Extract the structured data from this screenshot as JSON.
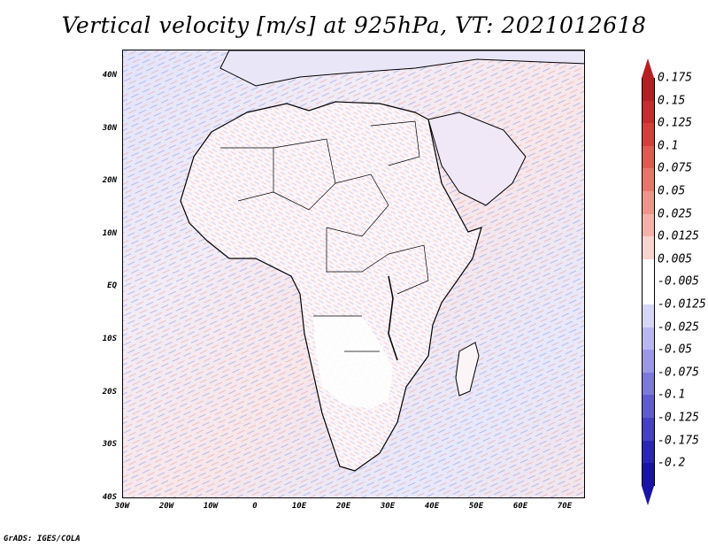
{
  "title": "Vertical velocity [m/s] at 925hPa, VT: 2021012618",
  "credit": "GrADS: IGES/COLA",
  "map": {
    "region": "Africa",
    "variable": "Vertical velocity",
    "units": "m/s",
    "level": "925hPa",
    "valid_time": "2021012618",
    "lat_labels": [
      "40N",
      "30N",
      "20N",
      "10N",
      "EQ",
      "10S",
      "20S",
      "30S",
      "40S"
    ],
    "lon_labels": [
      "30W",
      "20W",
      "10W",
      "0",
      "10E",
      "20E",
      "30E",
      "40E",
      "50E",
      "60E",
      "70E"
    ],
    "land_color": "#ffffff",
    "ocean_color_up": "#f6dde2",
    "ocean_color_down": "#dfe1f8"
  },
  "colorbar": {
    "labels": [
      "0.175",
      "0.15",
      "0.125",
      "0.1",
      "0.075",
      "0.05",
      "0.025",
      "0.0125",
      "0.005",
      "-0.005",
      "-0.0125",
      "-0.025",
      "-0.05",
      "-0.075",
      "-0.1",
      "-0.125",
      "-0.175",
      "-0.2"
    ],
    "colors": [
      "#b41f24",
      "#c42c2e",
      "#d43f3c",
      "#e05a52",
      "#e8756b",
      "#ee948a",
      "#f3b2a9",
      "#f8d4cf",
      "#ffffff",
      "#ffffff",
      "#d7d6f5",
      "#b9b8ee",
      "#9b98e4",
      "#7d79da",
      "#605bd0",
      "#4540c4",
      "#2b25b5",
      "#1a14a6"
    ]
  }
}
